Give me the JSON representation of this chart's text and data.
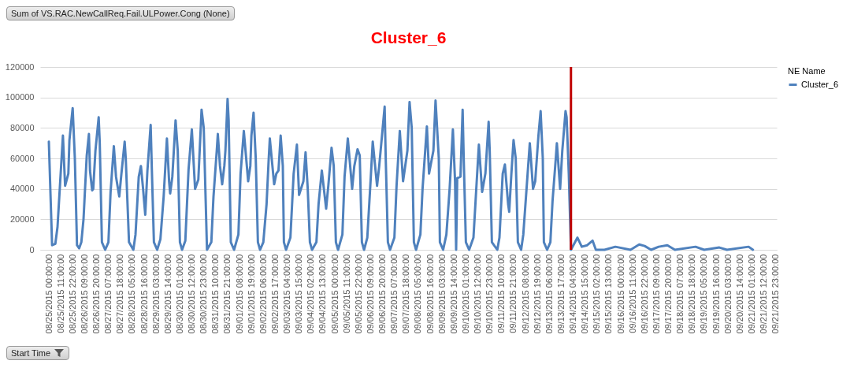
{
  "chart_data": {
    "type": "line",
    "title": "Cluster_6",
    "xlabel": "Start Time",
    "legend_title": "NE Name",
    "annotations": [
      "Sum of VS.RAC.NewCallReq.Fail.ULPower.Cong (None)"
    ],
    "xlim": [
      "2015-08-24T16:00",
      "2015-09-22T00:00"
    ],
    "ylim": [
      0,
      120000
    ],
    "yticks": [
      0,
      20000,
      40000,
      60000,
      80000,
      100000,
      120000
    ],
    "xticks": [
      {
        "value": "2015-08-25T00:00",
        "label": "08/25/2015 00:00:00"
      },
      {
        "value": "2015-08-25T11:00",
        "label": "08/25/2015 11:00:00"
      },
      {
        "value": "2015-08-25T22:00",
        "label": "08/25/2015 22:00:00"
      },
      {
        "value": "2015-08-26T09:00",
        "label": "08/26/2015 09:00:00"
      },
      {
        "value": "2015-08-26T20:00",
        "label": "08/26/2015 20:00:00"
      },
      {
        "value": "2015-08-27T07:00",
        "label": "08/27/2015 07:00:00"
      },
      {
        "value": "2015-08-27T18:00",
        "label": "08/27/2015 18:00:00"
      },
      {
        "value": "2015-08-28T05:00",
        "label": "08/28/2015 05:00:00"
      },
      {
        "value": "2015-08-28T16:00",
        "label": "08/28/2015 16:00:00"
      },
      {
        "value": "2015-08-29T03:00",
        "label": "08/29/2015 03:00:00"
      },
      {
        "value": "2015-08-29T14:00",
        "label": "08/29/2015 14:00:00"
      },
      {
        "value": "2015-08-30T01:00",
        "label": "08/30/2015 01:00:00"
      },
      {
        "value": "2015-08-30T12:00",
        "label": "08/30/2015 12:00:00"
      },
      {
        "value": "2015-08-30T23:00",
        "label": "08/30/2015 23:00:00"
      },
      {
        "value": "2015-08-31T10:00",
        "label": "08/31/2015 10:00:00"
      },
      {
        "value": "2015-08-31T21:00",
        "label": "08/31/2015 21:00:00"
      },
      {
        "value": "2015-09-01T08:00",
        "label": "09/01/2015 08:00:00"
      },
      {
        "value": "2015-09-01T19:00",
        "label": "09/01/2015 19:00:00"
      },
      {
        "value": "2015-09-02T06:00",
        "label": "09/02/2015 06:00:00"
      },
      {
        "value": "2015-09-02T17:00",
        "label": "09/02/2015 17:00:00"
      },
      {
        "value": "2015-09-03T04:00",
        "label": "09/03/2015 04:00:00"
      },
      {
        "value": "2015-09-03T15:00",
        "label": "09/03/2015 15:00:00"
      },
      {
        "value": "2015-09-04T02:00",
        "label": "09/04/2015 02:00:00"
      },
      {
        "value": "2015-09-04T13:00",
        "label": "09/04/2015 13:00:00"
      },
      {
        "value": "2015-09-05T00:00",
        "label": "09/05/2015 00:00:00"
      },
      {
        "value": "2015-09-05T11:00",
        "label": "09/05/2015 11:00:00"
      },
      {
        "value": "2015-09-05T22:00",
        "label": "09/05/2015 22:00:00"
      },
      {
        "value": "2015-09-06T09:00",
        "label": "09/06/2015 09:00:00"
      },
      {
        "value": "2015-09-06T20:00",
        "label": "09/06/2015 20:00:00"
      },
      {
        "value": "2015-09-07T07:00",
        "label": "09/07/2015 07:00:00"
      },
      {
        "value": "2015-09-07T18:00",
        "label": "09/07/2015 18:00:00"
      },
      {
        "value": "2015-09-08T05:00",
        "label": "09/08/2015 05:00:00"
      },
      {
        "value": "2015-09-08T16:00",
        "label": "09/08/2015 16:00:00"
      },
      {
        "value": "2015-09-09T03:00",
        "label": "09/09/2015 03:00:00"
      },
      {
        "value": "2015-09-09T14:00",
        "label": "09/09/2015 14:00:00"
      },
      {
        "value": "2015-09-10T01:00",
        "label": "09/10/2015 01:00:00"
      },
      {
        "value": "2015-09-10T12:00",
        "label": "09/10/2015 12:00:00"
      },
      {
        "value": "2015-09-10T23:00",
        "label": "09/10/2015 23:00:00"
      },
      {
        "value": "2015-09-11T10:00",
        "label": "09/11/2015 10:00:00"
      },
      {
        "value": "2015-09-11T21:00",
        "label": "09/11/2015 21:00:00"
      },
      {
        "value": "2015-09-12T08:00",
        "label": "09/12/2015 08:00:00"
      },
      {
        "value": "2015-09-12T19:00",
        "label": "09/12/2015 19:00:00"
      },
      {
        "value": "2015-09-13T06:00",
        "label": "09/13/2015 06:00:00"
      },
      {
        "value": "2015-09-13T17:00",
        "label": "09/13/2015 17:00:00"
      },
      {
        "value": "2015-09-14T04:00",
        "label": "09/14/2015 04:00:00"
      },
      {
        "value": "2015-09-14T15:00",
        "label": "09/14/2015 15:00:00"
      },
      {
        "value": "2015-09-15T02:00",
        "label": "09/15/2015 02:00:00"
      },
      {
        "value": "2015-09-15T13:00",
        "label": "09/15/2015 13:00:00"
      },
      {
        "value": "2015-09-16T00:00",
        "label": "09/16/2015 00:00:00"
      },
      {
        "value": "2015-09-16T11:00",
        "label": "09/16/2015 11:00:00"
      },
      {
        "value": "2015-09-16T22:00",
        "label": "09/16/2015 22:00:00"
      },
      {
        "value": "2015-09-17T09:00",
        "label": "09/17/2015 09:00:00"
      },
      {
        "value": "2015-09-17T20:00",
        "label": "09/17/2015 20:00:00"
      },
      {
        "value": "2015-09-18T07:00",
        "label": "09/18/2015 07:00:00"
      },
      {
        "value": "2015-09-18T18:00",
        "label": "09/18/2015 18:00:00"
      },
      {
        "value": "2015-09-19T05:00",
        "label": "09/19/2015 05:00:00"
      },
      {
        "value": "2015-09-19T16:00",
        "label": "09/19/2015 16:00:00"
      },
      {
        "value": "2015-09-20T03:00",
        "label": "09/20/2015 03:00:00"
      },
      {
        "value": "2015-09-20T14:00",
        "label": "09/20/2015 14:00:00"
      },
      {
        "value": "2015-09-21T01:00",
        "label": "09/21/2015 01:00:00"
      },
      {
        "value": "2015-09-21T12:00",
        "label": "09/21/2015 12:00:00"
      },
      {
        "value": "2015-09-21T23:00",
        "label": "09/21/2015 23:00:00"
      }
    ],
    "grid": "y",
    "legend": "right",
    "marker": "none",
    "line_style": "solid",
    "ref_lines": [
      {
        "axis": "x",
        "value": "2015-09-14T02:00",
        "color": "#c00000"
      }
    ],
    "series": [
      {
        "name": "Cluster_6",
        "color": "#4f81bd",
        "x": [
          "2015-08-25T00:00",
          "2015-08-25T03:00",
          "2015-08-25T06:00",
          "2015-08-25T08:00",
          "2015-08-25T13:00",
          "2015-08-25T15:00",
          "2015-08-25T18:00",
          "2015-08-25T19:00",
          "2015-08-25T20:00",
          "2015-08-25T22:00",
          "2015-08-26T00:00",
          "2015-08-26T02:00",
          "2015-08-26T04:00",
          "2015-08-26T06:00",
          "2015-08-26T08:00",
          "2015-08-26T11:00",
          "2015-08-26T13:00",
          "2015-08-26T14:00",
          "2015-08-26T16:00",
          "2015-08-26T17:00",
          "2015-08-26T19:00",
          "2015-08-26T22:00",
          "2015-08-26T23:00",
          "2015-08-27T01:00",
          "2015-08-27T04:00",
          "2015-08-27T07:00",
          "2015-08-27T09:00",
          "2015-08-27T12:00",
          "2015-08-27T14:00",
          "2015-08-27T17:00",
          "2015-08-27T19:00",
          "2015-08-27T22:00",
          "2015-08-27T23:00",
          "2015-08-28T02:00",
          "2015-08-28T06:00",
          "2015-08-28T08:00",
          "2015-08-28T11:00",
          "2015-08-28T13:00",
          "2015-08-28T15:00",
          "2015-08-28T17:00",
          "2015-08-28T19:00",
          "2015-08-28T22:00",
          "2015-08-28T23:00",
          "2015-08-29T01:00",
          "2015-08-29T04:00",
          "2015-08-29T07:00",
          "2015-08-29T10:00",
          "2015-08-29T13:00",
          "2015-08-29T15:00",
          "2015-08-29T16:00",
          "2015-08-29T18:00",
          "2015-08-29T21:00",
          "2015-08-29T23:00",
          "2015-08-30T01:00",
          "2015-08-30T03:00",
          "2015-08-30T06:00",
          "2015-08-30T09:00",
          "2015-08-30T12:00",
          "2015-08-30T15:00",
          "2015-08-30T18:00",
          "2015-08-30T21:00",
          "2015-08-30T23:00",
          "2015-08-31T02:00",
          "2015-08-31T06:00",
          "2015-08-31T08:00",
          "2015-08-31T11:00",
          "2015-08-31T12:00",
          "2015-08-31T14:00",
          "2015-08-31T16:00",
          "2015-08-31T18:00",
          "2015-08-31T19:00",
          "2015-08-31T21:00",
          "2015-08-31T22:00",
          "2015-09-01T00:00",
          "2015-09-01T03:00",
          "2015-09-01T07:00",
          "2015-09-01T09:00",
          "2015-09-01T12:00",
          "2015-09-01T16:00",
          "2015-09-01T18:00",
          "2015-09-01T19:00",
          "2015-09-01T21:00",
          "2015-09-01T23:00",
          "2015-09-02T01:00",
          "2015-09-02T03:00",
          "2015-09-02T06:00",
          "2015-09-02T09:00",
          "2015-09-02T11:00",
          "2015-09-02T12:00",
          "2015-09-02T16:00",
          "2015-09-02T18:00",
          "2015-09-02T20:00",
          "2015-09-02T22:00",
          "2015-09-03T00:00",
          "2015-09-03T01:00",
          "2015-09-03T03:00",
          "2015-09-03T07:00",
          "2015-09-03T10:00",
          "2015-09-03T13:00",
          "2015-09-03T15:00",
          "2015-09-03T19:00",
          "2015-09-03T21:00",
          "2015-09-03T23:00",
          "2015-09-04T01:00",
          "2015-09-04T03:00",
          "2015-09-04T07:00",
          "2015-09-04T09:00",
          "2015-09-04T12:00",
          "2015-09-04T16:00",
          "2015-09-04T18:00",
          "2015-09-04T21:00",
          "2015-09-04T23:00",
          "2015-09-05T01:00",
          "2015-09-05T03:00",
          "2015-09-05T07:00",
          "2015-09-05T09:00",
          "2015-09-05T12:00",
          "2015-09-05T16:00",
          "2015-09-05T18:00",
          "2015-09-05T21:00",
          "2015-09-05T23:00",
          "2015-09-06T01:00",
          "2015-09-06T03:00",
          "2015-09-06T06:00",
          "2015-09-06T09:00",
          "2015-09-06T11:00",
          "2015-09-06T15:00",
          "2015-09-06T17:00",
          "2015-09-06T22:00",
          "2015-09-06T23:00",
          "2015-09-07T01:00",
          "2015-09-07T03:00",
          "2015-09-07T07:00",
          "2015-09-07T09:00",
          "2015-09-07T12:00",
          "2015-09-07T15:00",
          "2015-09-07T19:00",
          "2015-09-07T21:00",
          "2015-09-07T23:00",
          "2015-09-08T01:00",
          "2015-09-08T03:00",
          "2015-09-08T07:00",
          "2015-09-08T09:00",
          "2015-09-08T13:00",
          "2015-09-08T15:00",
          "2015-09-08T19:00",
          "2015-09-08T21:00",
          "2015-09-09T00:00",
          "2015-09-09T01:00",
          "2015-09-09T04:00",
          "2015-09-09T07:00",
          "2015-09-09T10:00",
          "2015-09-09T13:00",
          "2015-09-09T15:00",
          "2015-09-09T16:00",
          "2015-09-09T17:00",
          "2015-09-09T20:00",
          "2015-09-09T22:00",
          "2015-09-09T23:00",
          "2015-09-10T01:00",
          "2015-09-10T04:00",
          "2015-09-10T08:00",
          "2015-09-10T11:00",
          "2015-09-10T13:00",
          "2015-09-10T16:00",
          "2015-09-10T19:00",
          "2015-09-10T22:00",
          "2015-09-10T23:00",
          "2015-09-11T01:00",
          "2015-09-11T06:00",
          "2015-09-11T08:00",
          "2015-09-11T11:00",
          "2015-09-11T13:00",
          "2015-09-11T16:00",
          "2015-09-11T17:00",
          "2015-09-11T19:00",
          "2015-09-11T21:00",
          "2015-09-11T23:00",
          "2015-09-12T01:00",
          "2015-09-12T04:00",
          "2015-09-12T06:00",
          "2015-09-12T09:00",
          "2015-09-12T12:00",
          "2015-09-12T15:00",
          "2015-09-12T17:00",
          "2015-09-12T20:00",
          "2015-09-12T22:00",
          "2015-09-13T00:00",
          "2015-09-13T01:00",
          "2015-09-13T04:00",
          "2015-09-13T07:00",
          "2015-09-13T09:00",
          "2015-09-13T12:00",
          "2015-09-13T13:00",
          "2015-09-13T16:00",
          "2015-09-13T18:00",
          "2015-09-13T21:00",
          "2015-09-13T22:00",
          "2015-09-14T00:00",
          "2015-09-14T02:00",
          "2015-09-14T08:00",
          "2015-09-14T12:00",
          "2015-09-14T17:00",
          "2015-09-14T22:00",
          "2015-09-15T01:00",
          "2015-09-15T09:00",
          "2015-09-15T19:00",
          "2015-09-16T09:00",
          "2015-09-16T17:00",
          "2015-09-16T22:00",
          "2015-09-17T04:00",
          "2015-09-17T11:00",
          "2015-09-17T19:00",
          "2015-09-18T02:00",
          "2015-09-18T21:00",
          "2015-09-19T05:00",
          "2015-09-19T19:00",
          "2015-09-20T02:00",
          "2015-09-20T22:00",
          "2015-09-21T02:00"
        ],
        "values": [
          71000,
          3000,
          4000,
          15000,
          75000,
          42000,
          50000,
          72000,
          79000,
          93000,
          60000,
          3000,
          1000,
          5000,
          20000,
          62000,
          76000,
          52000,
          39000,
          40000,
          65000,
          87000,
          70000,
          5000,
          0,
          5000,
          38000,
          68000,
          48000,
          35000,
          50000,
          71000,
          60000,
          5000,
          0,
          10000,
          48000,
          55000,
          40000,
          23000,
          52000,
          82000,
          55000,
          5000,
          0,
          7000,
          35000,
          73000,
          45000,
          37000,
          48000,
          85000,
          65000,
          5000,
          0,
          6000,
          53000,
          79000,
          40000,
          46000,
          92000,
          80000,
          0,
          5000,
          35000,
          65000,
          76000,
          55000,
          43000,
          55000,
          65000,
          99000,
          85000,
          5000,
          0,
          10000,
          50000,
          78000,
          45000,
          55000,
          75000,
          90000,
          60000,
          5000,
          0,
          5000,
          30000,
          60000,
          73000,
          43000,
          50000,
          52000,
          75000,
          55000,
          5000,
          0,
          8000,
          50000,
          69000,
          36000,
          45000,
          64000,
          40000,
          5000,
          0,
          5000,
          30000,
          52000,
          27000,
          42000,
          67000,
          55000,
          5000,
          0,
          10000,
          48000,
          73000,
          40000,
          55000,
          66000,
          62000,
          5000,
          0,
          8000,
          45000,
          71000,
          42000,
          55000,
          94000,
          60000,
          5000,
          0,
          8000,
          42000,
          78000,
          45000,
          65000,
          97000,
          80000,
          5000,
          0,
          10000,
          40000,
          81000,
          50000,
          65000,
          98000,
          60000,
          5000,
          0,
          10000,
          40000,
          79000,
          45000,
          0,
          47000,
          48000,
          92000,
          60000,
          5000,
          0,
          8000,
          45000,
          69000,
          38000,
          50000,
          84000,
          65000,
          5000,
          0,
          8000,
          50000,
          56000,
          30000,
          25000,
          50000,
          72000,
          60000,
          5000,
          0,
          10000,
          40000,
          70000,
          40000,
          45000,
          75000,
          91000,
          60000,
          5000,
          0,
          5000,
          32000,
          60000,
          70000,
          40000,
          65000,
          91000,
          87000,
          50000,
          0,
          8000,
          2000,
          3000,
          6000,
          0,
          0,
          2000,
          0,
          3500,
          2500,
          0,
          2000,
          3000,
          0,
          2000,
          0,
          1500,
          0,
          2000,
          0
        ]
      }
    ]
  }
}
